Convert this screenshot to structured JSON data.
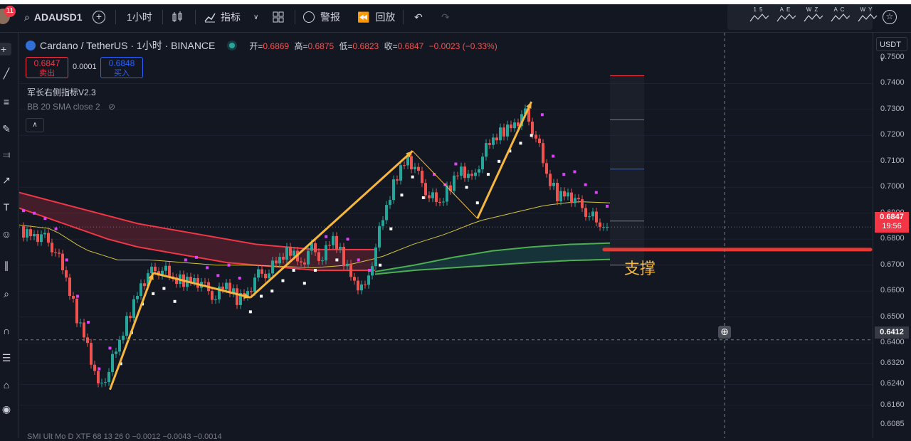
{
  "toolbar": {
    "notification_count": "11",
    "symbol": "ADAUSD1",
    "interval": "1小时",
    "indicators_label": "指标",
    "alerts_label": "警报",
    "replay_label": "回放",
    "pattern_labels": [
      "1 5",
      "A E",
      "W Z",
      "A C",
      "W Y"
    ]
  },
  "legend": {
    "symbol_name": "Cardano / TetherUS · 1小时 · BINANCE",
    "open_label": "开=",
    "open_value": "0.6869",
    "high_label": "高=",
    "high_value": "0.6875",
    "low_label": "低=",
    "low_value": "0.6823",
    "close_label": "收=",
    "close_value": "0.6847",
    "change": "−0.0023 (−0.33%)"
  },
  "trade": {
    "sell_price": "0.6847",
    "sell_label": "卖出",
    "spread": "0.0001",
    "buy_price": "0.6848",
    "buy_label": "买入"
  },
  "indicators": [
    {
      "name": "军长右侧指标V2.3"
    },
    {
      "name": "BB 20 SMA close 2"
    }
  ],
  "bottom_legend": "SMI  Ult  Mo  D  XTF  68  13  26  0  −0.0012  −0.0043  −0.0014",
  "axis": {
    "currency": "USDT",
    "ticks": [
      "0.7500",
      "0.7400",
      "0.7300",
      "0.7200",
      "0.7100",
      "0.7000",
      "0.6900",
      "0.6800",
      "0.6700",
      "0.6600",
      "0.6500",
      "0.6400",
      "0.6320",
      "0.6240",
      "0.6160",
      "0.6085"
    ],
    "current_price": "0.6847",
    "countdown": "19:56",
    "crosshair_price": "0.6412"
  },
  "annotation": {
    "support_label": "支撑"
  },
  "colors": {
    "up": "#26a69a",
    "down": "#ef5350",
    "arrow": "#f6b73c",
    "support_line": "#e53935",
    "bb_upper_fill": "#f23645",
    "bb_lower_fill": "#26a69a"
  },
  "chart_data": {
    "type": "candlestick",
    "title": "Cardano / TetherUS · 1小时 · BINANCE",
    "ylim": [
      0.6085,
      0.75
    ],
    "y_axis_unit": "USDT",
    "ohlc_last": {
      "open": 0.6869,
      "high": 0.6875,
      "low": 0.6823,
      "close": 0.6847
    },
    "support_level": 0.676,
    "close_series_approx": [
      0.683,
      0.682,
      0.68,
      0.676,
      0.664,
      0.65,
      0.64,
      0.622,
      0.63,
      0.64,
      0.652,
      0.663,
      0.667,
      0.669,
      0.664,
      0.664,
      0.665,
      0.661,
      0.658,
      0.662,
      0.657,
      0.66,
      0.666,
      0.668,
      0.672,
      0.676,
      0.671,
      0.676,
      0.673,
      0.68,
      0.672,
      0.664,
      0.66,
      0.678,
      0.692,
      0.705,
      0.712,
      0.704,
      0.697,
      0.693,
      0.701,
      0.708,
      0.702,
      0.713,
      0.718,
      0.722,
      0.725,
      0.728,
      0.72,
      0.704,
      0.697,
      0.698,
      0.693,
      0.69,
      0.6847
    ]
  }
}
